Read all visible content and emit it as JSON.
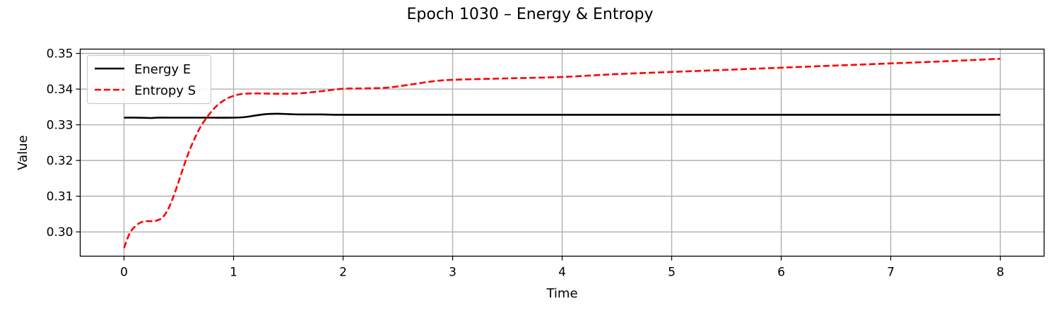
{
  "chart_data": {
    "type": "line",
    "title": "Epoch 1030 – Energy & Entropy",
    "xlabel": "Time",
    "ylabel": "Value",
    "xlim": [
      -0.4,
      8.4
    ],
    "ylim": [
      0.2932,
      0.3512
    ],
    "xticks": [
      0,
      1,
      2,
      3,
      4,
      5,
      6,
      7,
      8
    ],
    "yticks": [
      0.3,
      0.31,
      0.32,
      0.33,
      0.34,
      0.35
    ],
    "ytick_labels": [
      "0.30",
      "0.31",
      "0.32",
      "0.33",
      "0.34",
      "0.35"
    ],
    "grid": true,
    "legend_position": "top-left",
    "series": [
      {
        "name": "Energy E",
        "color": "#000000",
        "style": "solid",
        "x": [
          0,
          0.1,
          0.2,
          0.25,
          0.3,
          0.4,
          0.6,
          0.8,
          1.0,
          1.1,
          1.2,
          1.3,
          1.4,
          1.5,
          1.6,
          1.8,
          2.0,
          2.5,
          3.0,
          4.0,
          5.0,
          6.0,
          7.0,
          8.0
        ],
        "y": [
          0.332,
          0.332,
          0.33195,
          0.3319,
          0.332,
          0.332,
          0.332,
          0.332,
          0.332,
          0.33215,
          0.3326,
          0.333,
          0.3331,
          0.333,
          0.3329,
          0.3329,
          0.3328,
          0.3328,
          0.3328,
          0.3328,
          0.3328,
          0.3328,
          0.3328,
          0.3328
        ]
      },
      {
        "name": "Entropy S",
        "color": "#ff0000",
        "style": "dashed",
        "x": [
          0,
          0.05,
          0.1,
          0.15,
          0.2,
          0.25,
          0.3,
          0.35,
          0.4,
          0.45,
          0.5,
          0.55,
          0.6,
          0.65,
          0.7,
          0.75,
          0.8,
          0.85,
          0.9,
          0.95,
          1.0,
          1.05,
          1.1,
          1.2,
          1.4,
          1.6,
          1.8,
          2.0,
          2.2,
          2.4,
          2.6,
          2.8,
          3.0,
          3.5,
          4.0,
          4.5,
          5.0,
          5.5,
          6.0,
          6.5,
          7.0,
          7.5,
          8.0
        ],
        "y": [
          0.2955,
          0.2995,
          0.3015,
          0.3026,
          0.303,
          0.303,
          0.3032,
          0.304,
          0.3062,
          0.3098,
          0.3142,
          0.3188,
          0.323,
          0.3265,
          0.3295,
          0.3318,
          0.3338,
          0.3354,
          0.3366,
          0.3375,
          0.3381,
          0.3385,
          0.3387,
          0.3388,
          0.3387,
          0.3388,
          0.3394,
          0.3401,
          0.3402,
          0.3404,
          0.3412,
          0.3421,
          0.3426,
          0.343,
          0.3434,
          0.3442,
          0.3448,
          0.3454,
          0.346,
          0.3466,
          0.3472,
          0.3478,
          0.3485
        ]
      }
    ]
  }
}
